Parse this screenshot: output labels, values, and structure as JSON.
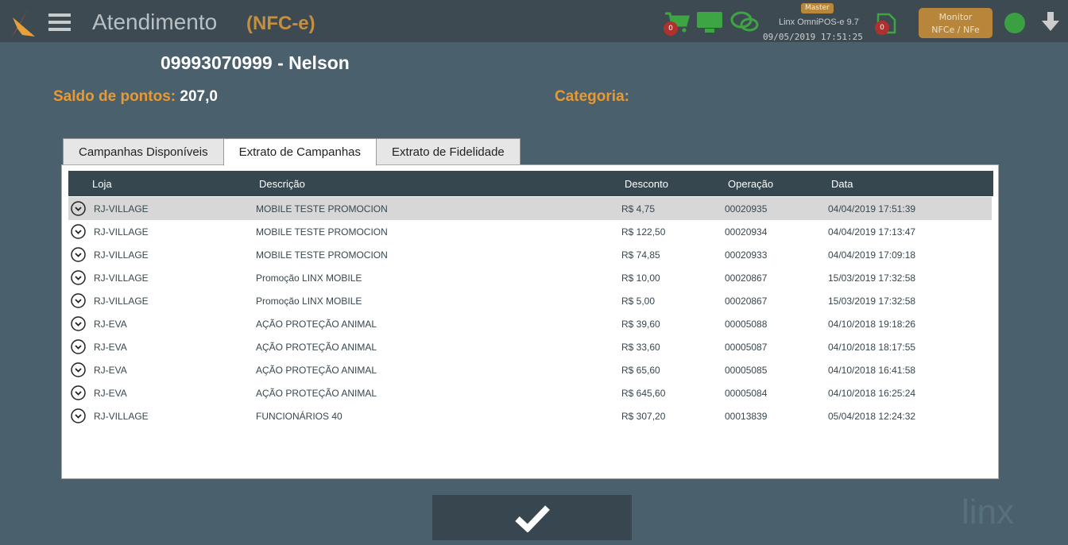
{
  "header": {
    "title": "Atendimento",
    "subtitle": "(NFC-e)",
    "cart_count": "0",
    "doc_count": "0",
    "badge": "Master",
    "version": "Linx OmniPOS-e  9.7",
    "datetime": "09/05/2019 17:51:25",
    "monitor_label_1": "Monitor",
    "monitor_label_2": "NFCe / NFe"
  },
  "customer": {
    "title": "09993070999 - Nelson",
    "points_label": "Saldo de pontos:",
    "points_value": "207,0",
    "category_label": "Categoria:",
    "category_value": ""
  },
  "tabs": [
    {
      "label": "Campanhas Disponíveis"
    },
    {
      "label": "Extrato de Campanhas",
      "active": true
    },
    {
      "label": "Extrato de Fidelidade"
    }
  ],
  "table": {
    "columns": [
      "Loja",
      "Descrição",
      "Desconto",
      "Operação",
      "Data"
    ],
    "rows": [
      [
        "RJ-VILLAGE",
        "MOBILE TESTE PROMOCION",
        "R$ 4,75",
        "00020935",
        "04/04/2019 17:51:39"
      ],
      [
        "RJ-VILLAGE",
        "MOBILE TESTE PROMOCION",
        "R$ 122,50",
        "00020934",
        "04/04/2019 17:13:47"
      ],
      [
        "RJ-VILLAGE",
        "MOBILE TESTE PROMOCION",
        "R$ 74,85",
        "00020933",
        "04/04/2019 17:09:18"
      ],
      [
        "RJ-VILLAGE",
        "Promoção LINX MOBILE",
        "R$ 10,00",
        "00020867",
        "15/03/2019 17:32:58"
      ],
      [
        "RJ-VILLAGE",
        "Promoção LINX MOBILE",
        "R$ 5,00",
        "00020867",
        "15/03/2019 17:32:58"
      ],
      [
        "RJ-EVA",
        "AÇÃO PROTEÇÃO ANIMAL",
        "R$ 39,60",
        "00005088",
        "04/10/2018 19:18:26"
      ],
      [
        "RJ-EVA",
        "AÇÃO PROTEÇÃO ANIMAL",
        "R$ 33,60",
        "00005087",
        "04/10/2018 18:17:55"
      ],
      [
        "RJ-EVA",
        "AÇÃO PROTEÇÃO ANIMAL",
        "R$ 65,60",
        "00005085",
        "04/10/2018 16:41:58"
      ],
      [
        "RJ-EVA",
        "AÇÃO PROTEÇÃO ANIMAL",
        "R$ 645,60",
        "00005084",
        "04/10/2018 16:25:24"
      ],
      [
        "RJ-VILLAGE",
        "FUNCIONÁRIOS 40",
        "R$ 307,20",
        "00013839",
        "05/04/2018 12:24:32"
      ]
    ]
  },
  "watermark": "linx",
  "colors": {
    "accent": "#e89a30",
    "topbar": "#3e4a51",
    "background": "#4a616d",
    "icon_green": "#3da543"
  }
}
